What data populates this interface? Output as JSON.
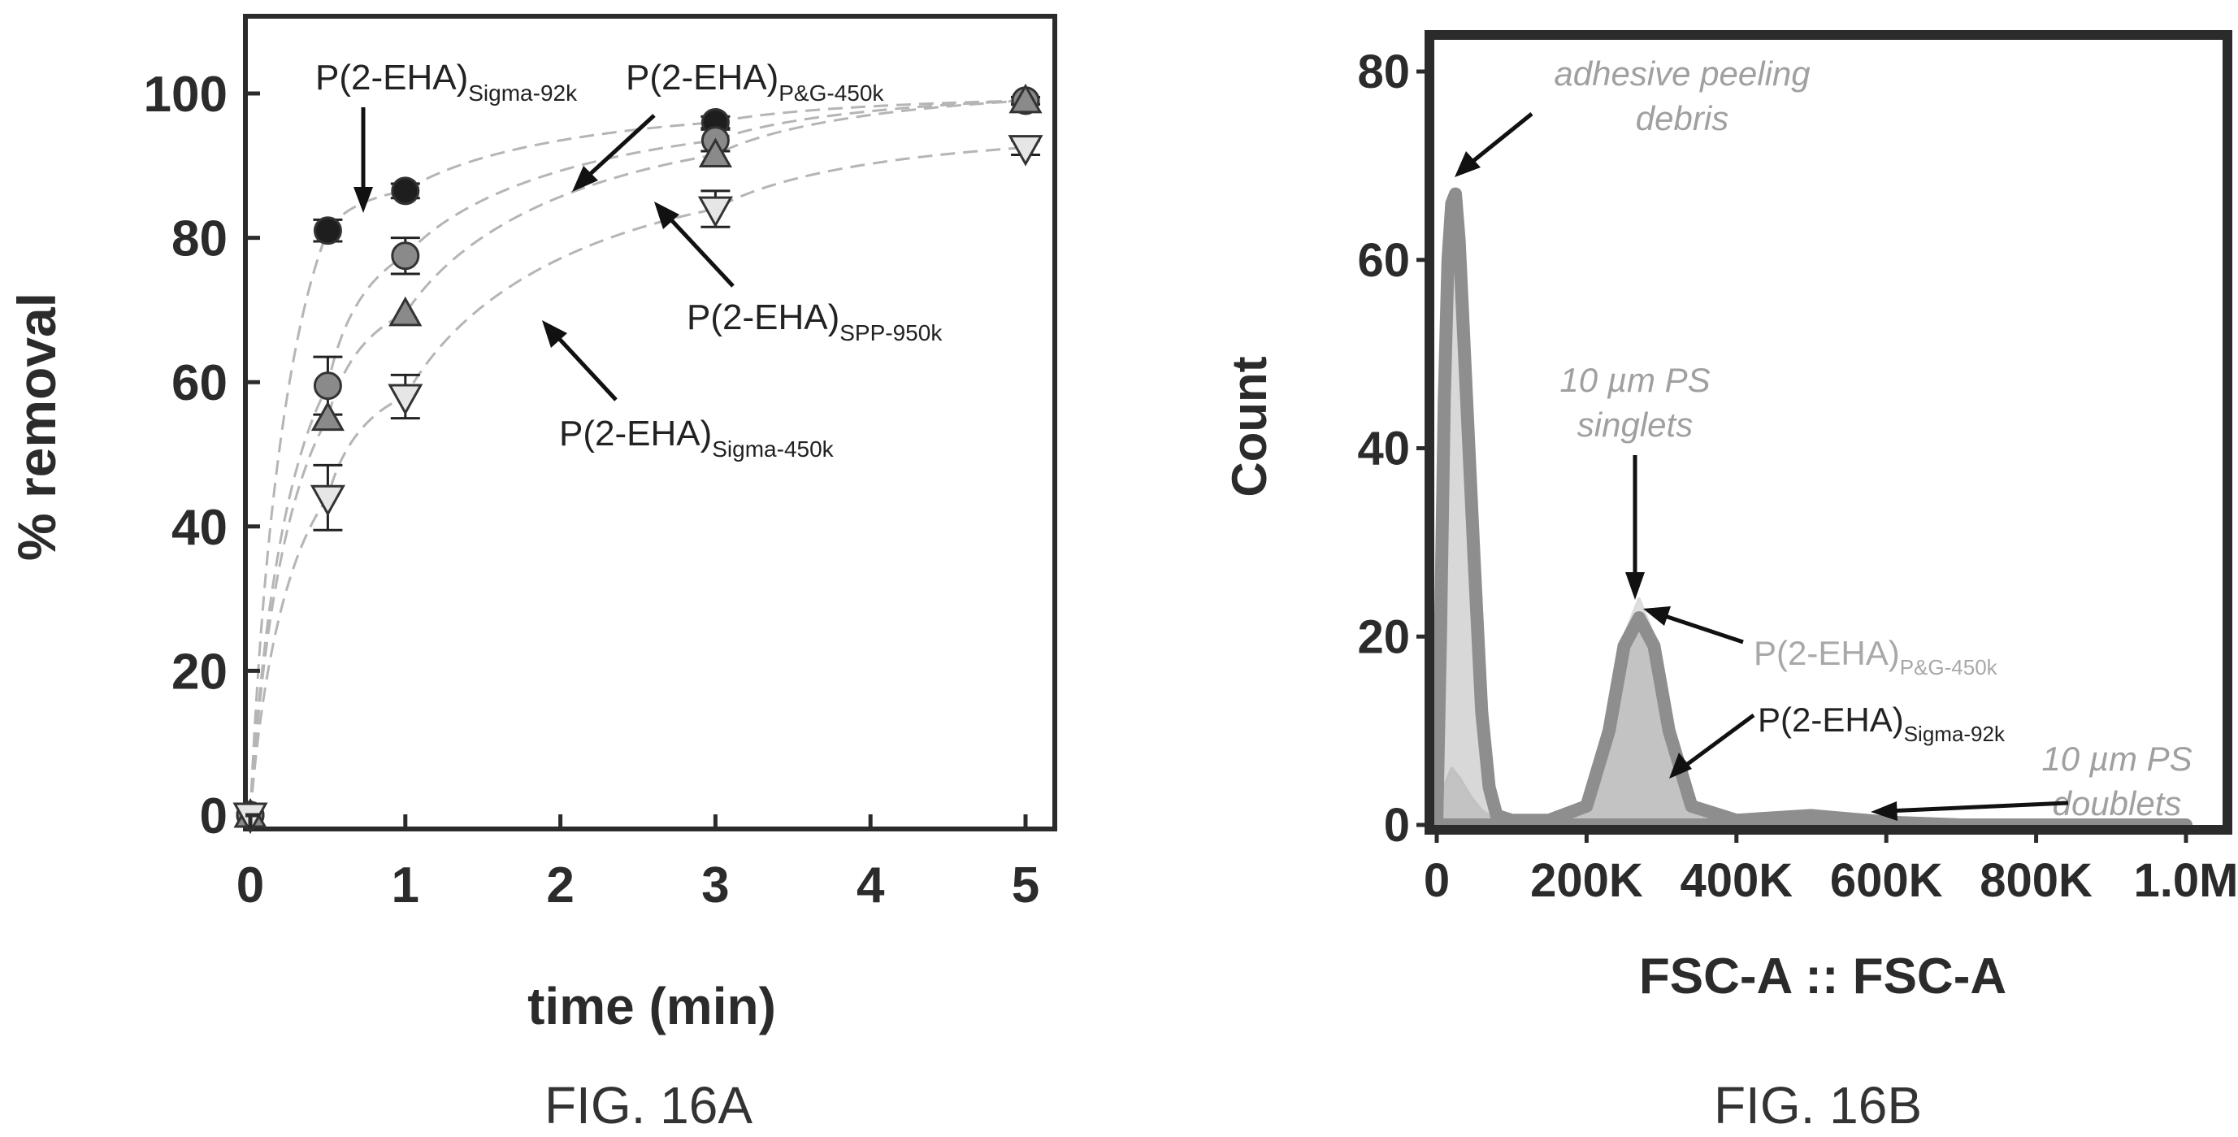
{
  "chart_data": [
    {
      "type": "scatter",
      "figure_label": "FIG. 16A",
      "title": "",
      "xlabel": "time (min)",
      "ylabel": "% removal",
      "xlim": [
        0,
        5
      ],
      "ylim": [
        0,
        100
      ],
      "xticks": [
        "0",
        "1",
        "2",
        "3",
        "4",
        "5"
      ],
      "yticks": [
        "0",
        "20",
        "40",
        "60",
        "80",
        "100"
      ],
      "grid": false,
      "series": [
        {
          "name": "P(2-EHA)Sigma-92k",
          "label_main": "P(2-EHA)",
          "label_sub": "Sigma-92k",
          "marker": "circle",
          "color": "#1e1e1e",
          "x": [
            0,
            0.5,
            1,
            3,
            5
          ],
          "y": [
            0,
            81,
            86.5,
            96,
            99
          ],
          "err": [
            0,
            1.5,
            1,
            0.8,
            0.5
          ]
        },
        {
          "name": "P(2-EHA)P&G-450k",
          "label_main": "P(2-EHA)",
          "label_sub": "P&G-450k",
          "marker": "circle",
          "color": "#8a8a8a",
          "x": [
            0,
            0.5,
            1,
            3,
            5
          ],
          "y": [
            0,
            59.5,
            77.5,
            93.5,
            99
          ],
          "err": [
            0,
            4,
            2.5,
            1.5,
            0.5
          ]
        },
        {
          "name": "P(2-EHA)SPP-950k",
          "label_main": "P(2-EHA)",
          "label_sub": "SPP-950k",
          "marker": "triangle-up",
          "color": "#8a8a8a",
          "x": [
            0,
            0.5,
            1,
            3,
            5
          ],
          "y": [
            0,
            55,
            69.5,
            91.5,
            99
          ],
          "err": [
            0,
            0,
            0,
            0,
            0
          ]
        },
        {
          "name": "P(2-EHA)Sigma-450k",
          "label_main": "P(2-EHA)",
          "label_sub": "Sigma-450k",
          "marker": "triangle-down",
          "color": "#e6e6e6",
          "x": [
            0,
            0.5,
            1,
            3,
            5
          ],
          "y": [
            0,
            44,
            58,
            84,
            92.5
          ],
          "err": [
            0,
            4.5,
            3,
            2.5,
            1
          ]
        }
      ]
    },
    {
      "type": "area",
      "figure_label": "FIG. 16B",
      "title": "",
      "xlabel": "FSC-A :: FSC-A",
      "ylabel": "Count",
      "xlim": [
        0,
        1000000
      ],
      "ylim": [
        0,
        80
      ],
      "xticks": [
        "0",
        "200K",
        "400K",
        "600K",
        "800K",
        "1.0M"
      ],
      "yticks": [
        "0",
        "20",
        "40",
        "60",
        "80"
      ],
      "grid": false,
      "series": [
        {
          "name": "P(2-EHA)P&G-450k",
          "label_main": "P(2-EHA)",
          "label_sub": "P&G-450k",
          "color": "#dcdcdc",
          "x": [
            0,
            10000,
            20000,
            30000,
            45000,
            60000,
            80000,
            100000,
            150000,
            200000,
            230000,
            250000,
            270000,
            290000,
            310000,
            340000,
            400000,
            500000,
            600000,
            700000,
            800000,
            1000000
          ],
          "y": [
            0,
            4,
            6,
            5,
            3,
            1.5,
            0.5,
            0.3,
            0.3,
            2,
            10,
            20,
            24,
            20,
            10,
            2,
            0.6,
            0.8,
            0.3,
            0,
            0,
            0
          ]
        },
        {
          "name": "P(2-EHA)Sigma-92k",
          "label_main": "P(2-EHA)",
          "label_sub": "Sigma-92k",
          "color": "#8e8e8e",
          "x": [
            0,
            5000,
            10000,
            15000,
            20000,
            25000,
            30000,
            40000,
            50000,
            60000,
            70000,
            80000,
            100000,
            150000,
            200000,
            230000,
            250000,
            270000,
            290000,
            310000,
            340000,
            400000,
            500000,
            600000,
            700000,
            800000,
            1000000
          ],
          "y": [
            0,
            20,
            45,
            60,
            66,
            67,
            62,
            45,
            28,
            12,
            4,
            1,
            0.5,
            0.5,
            2,
            10,
            19,
            22,
            19,
            10,
            2,
            0.5,
            1,
            0.3,
            0,
            0,
            0
          ]
        }
      ],
      "annotations": [
        {
          "line1": "adhesive peeling",
          "line2": "debris"
        },
        {
          "line1": "10 µm PS",
          "line2": "singlets"
        },
        {
          "line1": "10 µm PS",
          "line2": "doublets"
        }
      ]
    }
  ]
}
